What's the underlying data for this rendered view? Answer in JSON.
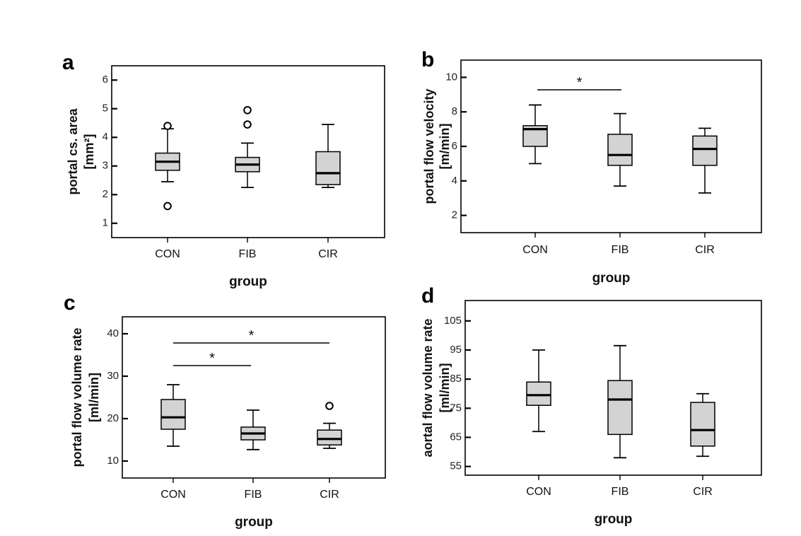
{
  "chart_data": [
    {
      "panel": "a",
      "type": "box",
      "categories": [
        "CON",
        "FIB",
        "CIR"
      ],
      "xlabel": "group",
      "ylabel_lines": [
        "portal cs. area",
        "[mm²]"
      ],
      "ylim": [
        0.5,
        6.5
      ],
      "yticks": [
        1,
        2,
        3,
        4,
        5,
        6
      ],
      "boxes": [
        {
          "category": "CON",
          "whisker_low": 2.45,
          "q1": 2.85,
          "median": 3.15,
          "q3": 3.45,
          "whisker_high": 4.3,
          "outliers": [
            4.4,
            1.6
          ]
        },
        {
          "category": "FIB",
          "whisker_low": 2.25,
          "q1": 2.8,
          "median": 3.05,
          "q3": 3.3,
          "whisker_high": 3.8,
          "outliers": [
            4.45,
            4.95
          ]
        },
        {
          "category": "CIR",
          "whisker_low": 2.25,
          "q1": 2.35,
          "median": 2.75,
          "q3": 3.5,
          "whisker_high": 4.45,
          "outliers": []
        }
      ],
      "significance": []
    },
    {
      "panel": "b",
      "type": "box",
      "categories": [
        "CON",
        "FIB",
        "CIR"
      ],
      "xlabel": "group",
      "ylabel_lines": [
        "portal flow velocity",
        "[m/min]"
      ],
      "ylim": [
        1,
        11
      ],
      "yticks": [
        2,
        4,
        6,
        8,
        10
      ],
      "boxes": [
        {
          "category": "CON",
          "whisker_low": 5.0,
          "q1": 6.0,
          "median": 7.0,
          "q3": 7.2,
          "whisker_high": 8.4,
          "outliers": []
        },
        {
          "category": "FIB",
          "whisker_low": 3.7,
          "q1": 4.9,
          "median": 5.5,
          "q3": 6.7,
          "whisker_high": 7.9,
          "outliers": []
        },
        {
          "category": "CIR",
          "whisker_low": 3.3,
          "q1": 4.9,
          "median": 5.85,
          "q3": 6.6,
          "whisker_high": 7.05,
          "outliers": []
        }
      ],
      "significance": [
        {
          "from": "CON",
          "to": "FIB",
          "label": "*"
        }
      ]
    },
    {
      "panel": "c",
      "type": "box",
      "categories": [
        "CON",
        "FIB",
        "CIR"
      ],
      "xlabel": "group",
      "ylabel_lines": [
        "portal flow volume rate",
        "[ml/min]"
      ],
      "ylim": [
        6,
        44
      ],
      "yticks": [
        10,
        20,
        30,
        40
      ],
      "boxes": [
        {
          "category": "CON",
          "whisker_low": 13.5,
          "q1": 17.5,
          "median": 20.3,
          "q3": 24.5,
          "whisker_high": 28.0,
          "outliers": []
        },
        {
          "category": "FIB",
          "whisker_low": 12.7,
          "q1": 15.0,
          "median": 16.5,
          "q3": 18.0,
          "whisker_high": 22.0,
          "outliers": []
        },
        {
          "category": "CIR",
          "whisker_low": 13.0,
          "q1": 13.8,
          "median": 15.2,
          "q3": 17.3,
          "whisker_high": 18.9,
          "outliers": [
            23.0
          ]
        }
      ],
      "significance": [
        {
          "from": "CON",
          "to": "FIB",
          "label": "*"
        },
        {
          "from": "CON",
          "to": "CIR",
          "label": "*"
        }
      ]
    },
    {
      "panel": "d",
      "type": "box",
      "categories": [
        "CON",
        "FIB",
        "CIR"
      ],
      "xlabel": "group",
      "ylabel_lines": [
        "aortal flow volume rate",
        "[ml/min]"
      ],
      "ylim": [
        52,
        112
      ],
      "yticks": [
        55,
        65,
        75,
        85,
        95,
        105
      ],
      "boxes": [
        {
          "category": "CON",
          "whisker_low": 67,
          "q1": 76,
          "median": 79.5,
          "q3": 84,
          "whisker_high": 95,
          "outliers": []
        },
        {
          "category": "FIB",
          "whisker_low": 58,
          "q1": 66,
          "median": 78,
          "q3": 84.5,
          "whisker_high": 96.5,
          "outliers": []
        },
        {
          "category": "CIR",
          "whisker_low": 58.5,
          "q1": 62,
          "median": 67.5,
          "q3": 77,
          "whisker_high": 80,
          "outliers": []
        }
      ],
      "significance": []
    }
  ]
}
